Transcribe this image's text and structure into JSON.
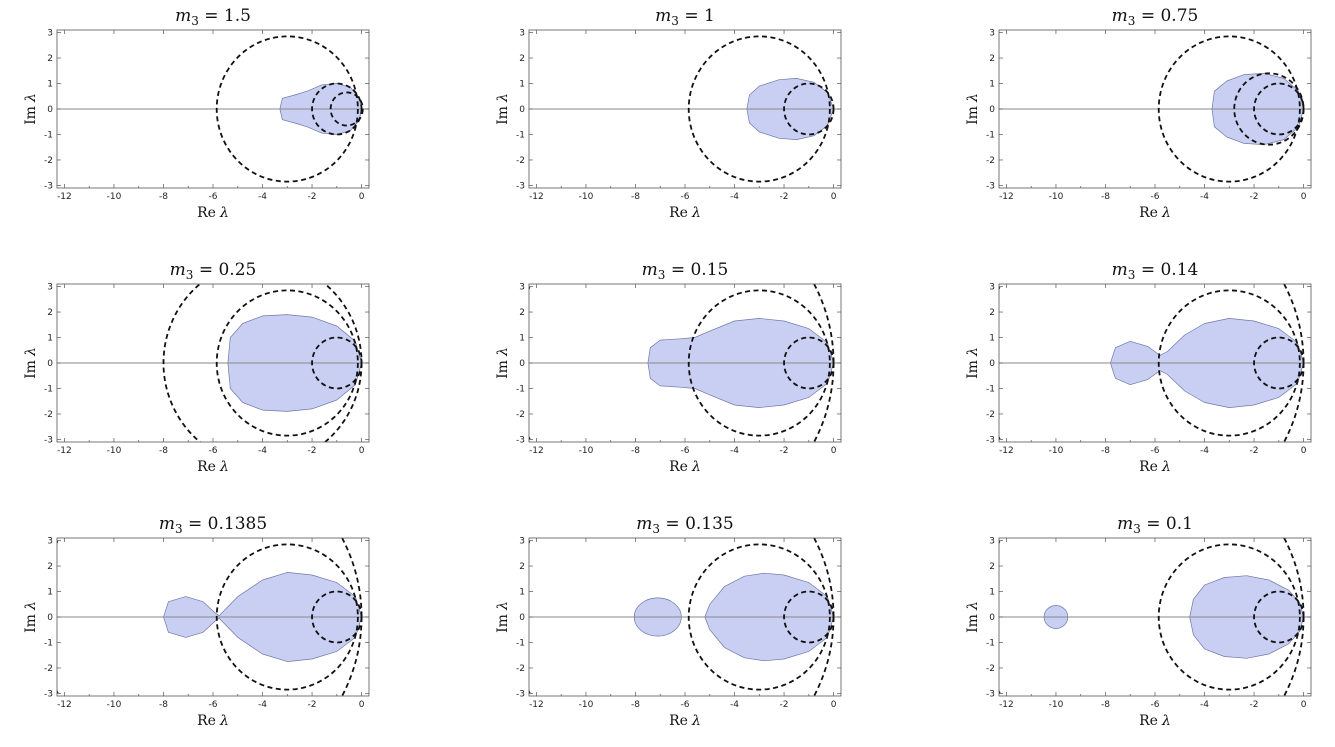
{
  "chart_data": [
    {
      "type": "region",
      "title_var": "m",
      "title_sub": "3",
      "title_value": "1.5",
      "xlabel_main": "Re",
      "ylabel_main": "Im",
      "label_var": "λ",
      "xlim": [
        -12.3,
        0.3
      ],
      "ylim": [
        -3.1,
        3.1
      ],
      "xticks": [
        -12,
        -10,
        -8,
        -6,
        -4,
        -2,
        0
      ],
      "yticks": [
        -3,
        -2,
        -1,
        0,
        1,
        2,
        3
      ],
      "circles": [
        {
          "cx": -3,
          "r": 2.85
        },
        {
          "cx": -1,
          "r": 1
        },
        {
          "cx": -0.6,
          "r": 0.65
        }
      ],
      "region_outline": [
        [
          -3.3,
          0
        ],
        [
          -3.2,
          0.42
        ],
        [
          -2.7,
          0.55
        ],
        [
          -2.2,
          0.7
        ],
        [
          -1.6,
          0.95
        ],
        [
          -1.0,
          1.0
        ],
        [
          -0.45,
          0.85
        ],
        [
          -0.1,
          0.45
        ],
        [
          0,
          0
        ],
        [
          -0.1,
          -0.45
        ],
        [
          -0.45,
          -0.85
        ],
        [
          -1.0,
          -1.0
        ],
        [
          -1.6,
          -0.95
        ],
        [
          -2.2,
          -0.7
        ],
        [
          -2.7,
          -0.55
        ],
        [
          -3.2,
          -0.42
        ]
      ]
    },
    {
      "type": "region",
      "title_var": "m",
      "title_sub": "3",
      "title_value": "1",
      "xlabel_main": "Re",
      "ylabel_main": "Im",
      "label_var": "λ",
      "xlim": [
        -12.3,
        0.3
      ],
      "ylim": [
        -3.1,
        3.1
      ],
      "xticks": [
        -12,
        -10,
        -8,
        -6,
        -4,
        -2,
        0
      ],
      "yticks": [
        -3,
        -2,
        -1,
        0,
        1,
        2,
        3
      ],
      "circles": [
        {
          "cx": -3,
          "r": 2.85
        },
        {
          "cx": -1,
          "r": 1
        }
      ],
      "region_outline": [
        [
          -3.5,
          0
        ],
        [
          -3.4,
          0.55
        ],
        [
          -3.0,
          0.9
        ],
        [
          -2.2,
          1.15
        ],
        [
          -1.5,
          1.2
        ],
        [
          -0.8,
          1.05
        ],
        [
          -0.25,
          0.65
        ],
        [
          0,
          0
        ],
        [
          -0.25,
          -0.65
        ],
        [
          -0.8,
          -1.05
        ],
        [
          -1.5,
          -1.2
        ],
        [
          -2.2,
          -1.15
        ],
        [
          -3.0,
          -0.9
        ],
        [
          -3.4,
          -0.55
        ]
      ]
    },
    {
      "type": "region",
      "title_var": "m",
      "title_sub": "3",
      "title_value": "0.75",
      "xlabel_main": "Re",
      "ylabel_main": "Im",
      "label_var": "λ",
      "xlim": [
        -12.3,
        0.3
      ],
      "ylim": [
        -3.1,
        3.1
      ],
      "xticks": [
        -12,
        -10,
        -8,
        -6,
        -4,
        -2,
        0
      ],
      "yticks": [
        -3,
        -2,
        -1,
        0,
        1,
        2,
        3
      ],
      "circles": [
        {
          "cx": -3,
          "r": 2.85
        },
        {
          "cx": -1.4,
          "r": 1.4
        },
        {
          "cx": -1,
          "r": 1
        }
      ],
      "region_outline": [
        [
          -3.7,
          0
        ],
        [
          -3.6,
          0.7
        ],
        [
          -3.1,
          1.1
        ],
        [
          -2.4,
          1.35
        ],
        [
          -1.6,
          1.4
        ],
        [
          -0.8,
          1.2
        ],
        [
          -0.2,
          0.7
        ],
        [
          0,
          0
        ],
        [
          -0.2,
          -0.7
        ],
        [
          -0.8,
          -1.2
        ],
        [
          -1.6,
          -1.4
        ],
        [
          -2.4,
          -1.35
        ],
        [
          -3.1,
          -1.1
        ],
        [
          -3.6,
          -0.7
        ]
      ]
    },
    {
      "type": "region",
      "title_var": "m",
      "title_sub": "3",
      "title_value": "0.25",
      "xlabel_main": "Re",
      "ylabel_main": "Im",
      "label_var": "λ",
      "xlim": [
        -12.3,
        0.3
      ],
      "ylim": [
        -3.1,
        3.1
      ],
      "xticks": [
        -12,
        -10,
        -8,
        -6,
        -4,
        -2,
        0
      ],
      "yticks": [
        -3,
        -2,
        -1,
        0,
        1,
        2,
        3
      ],
      "circles": [
        {
          "cx": -4,
          "r": 4
        },
        {
          "cx": -3,
          "r": 2.85
        },
        {
          "cx": -1,
          "r": 1
        }
      ],
      "region_outline": [
        [
          -5.4,
          0
        ],
        [
          -5.3,
          1.0
        ],
        [
          -4.8,
          1.55
        ],
        [
          -4.0,
          1.85
        ],
        [
          -3.0,
          1.9
        ],
        [
          -2.0,
          1.8
        ],
        [
          -1.0,
          1.45
        ],
        [
          -0.25,
          0.85
        ],
        [
          0,
          0
        ],
        [
          -0.25,
          -0.85
        ],
        [
          -1.0,
          -1.45
        ],
        [
          -2.0,
          -1.8
        ],
        [
          -3.0,
          -1.9
        ],
        [
          -4.0,
          -1.85
        ],
        [
          -4.8,
          -1.55
        ],
        [
          -5.3,
          -1.0
        ]
      ]
    },
    {
      "type": "region",
      "title_var": "m",
      "title_sub": "3",
      "title_value": "0.15",
      "xlabel_main": "Re",
      "ylabel_main": "Im",
      "label_var": "λ",
      "xlim": [
        -12.3,
        0.3
      ],
      "ylim": [
        -3.1,
        3.1
      ],
      "xticks": [
        -12,
        -10,
        -8,
        -6,
        -4,
        -2,
        0
      ],
      "yticks": [
        -3,
        -2,
        -1,
        0,
        1,
        2,
        3
      ],
      "circles": [
        {
          "cx": -3,
          "r": 2.85
        },
        {
          "cx": -1,
          "r": 1
        },
        {
          "cx": -6.5,
          "r": 6.5
        }
      ],
      "region_outline": [
        [
          -7.5,
          0
        ],
        [
          -7.4,
          0.6
        ],
        [
          -7.0,
          0.9
        ],
        [
          -6.2,
          0.95
        ],
        [
          -5.6,
          1.0
        ],
        [
          -5.0,
          1.25
        ],
        [
          -4.0,
          1.65
        ],
        [
          -3.0,
          1.75
        ],
        [
          -2.0,
          1.65
        ],
        [
          -1.0,
          1.35
        ],
        [
          -0.25,
          0.8
        ],
        [
          0,
          0
        ],
        [
          -0.25,
          -0.8
        ],
        [
          -1.0,
          -1.35
        ],
        [
          -2.0,
          -1.65
        ],
        [
          -3.0,
          -1.75
        ],
        [
          -4.0,
          -1.65
        ],
        [
          -5.0,
          -1.25
        ],
        [
          -5.6,
          -1.0
        ],
        [
          -6.2,
          -0.95
        ],
        [
          -7.0,
          -0.9
        ],
        [
          -7.4,
          -0.6
        ]
      ]
    },
    {
      "type": "region",
      "title_var": "m",
      "title_sub": "3",
      "title_value": "0.14",
      "xlabel_main": "Re",
      "ylabel_main": "Im",
      "label_var": "λ",
      "xlim": [
        -12.3,
        0.3
      ],
      "ylim": [
        -3.1,
        3.1
      ],
      "xticks": [
        -12,
        -10,
        -8,
        -6,
        -4,
        -2,
        0
      ],
      "yticks": [
        -3,
        -2,
        -1,
        0,
        1,
        2,
        3
      ],
      "circles": [
        {
          "cx": -3,
          "r": 2.85
        },
        {
          "cx": -1,
          "r": 1
        },
        {
          "cx": -6.5,
          "r": 6.5
        }
      ],
      "region_outline": [
        [
          -7.8,
          0
        ],
        [
          -7.6,
          0.6
        ],
        [
          -7.0,
          0.85
        ],
        [
          -6.3,
          0.65
        ],
        [
          -5.8,
          0.3
        ],
        [
          -5.5,
          0.45
        ],
        [
          -4.8,
          1.1
        ],
        [
          -4.0,
          1.55
        ],
        [
          -3.0,
          1.75
        ],
        [
          -2.0,
          1.65
        ],
        [
          -1.0,
          1.35
        ],
        [
          -0.25,
          0.8
        ],
        [
          0,
          0
        ],
        [
          -0.25,
          -0.8
        ],
        [
          -1.0,
          -1.35
        ],
        [
          -2.0,
          -1.65
        ],
        [
          -3.0,
          -1.75
        ],
        [
          -4.0,
          -1.55
        ],
        [
          -4.8,
          -1.1
        ],
        [
          -5.5,
          -0.45
        ],
        [
          -5.8,
          -0.3
        ],
        [
          -6.3,
          -0.65
        ],
        [
          -7.0,
          -0.85
        ],
        [
          -7.6,
          -0.6
        ]
      ]
    },
    {
      "type": "region",
      "title_var": "m",
      "title_sub": "3",
      "title_value": "0.1385",
      "xlabel_main": "Re",
      "ylabel_main": "Im",
      "label_var": "λ",
      "xlim": [
        -12.3,
        0.3
      ],
      "ylim": [
        -3.1,
        3.1
      ],
      "xticks": [
        -12,
        -10,
        -8,
        -6,
        -4,
        -2,
        0
      ],
      "yticks": [
        -3,
        -2,
        -1,
        0,
        1,
        2,
        3
      ],
      "circles": [
        {
          "cx": -3,
          "r": 2.85
        },
        {
          "cx": -1,
          "r": 1
        },
        {
          "cx": -6.5,
          "r": 6.5
        }
      ],
      "region_outline": [
        [
          -8.0,
          0
        ],
        [
          -7.8,
          0.6
        ],
        [
          -7.1,
          0.8
        ],
        [
          -6.4,
          0.6
        ],
        [
          -5.9,
          0.15
        ],
        [
          -5.75,
          0.05
        ],
        [
          -5.6,
          0.2
        ],
        [
          -5.0,
          0.8
        ],
        [
          -4.0,
          1.45
        ],
        [
          -3.0,
          1.75
        ],
        [
          -2.0,
          1.65
        ],
        [
          -1.0,
          1.35
        ],
        [
          -0.25,
          0.8
        ],
        [
          0,
          0
        ],
        [
          -0.25,
          -0.8
        ],
        [
          -1.0,
          -1.35
        ],
        [
          -2.0,
          -1.65
        ],
        [
          -3.0,
          -1.75
        ],
        [
          -4.0,
          -1.45
        ],
        [
          -5.0,
          -0.8
        ],
        [
          -5.6,
          -0.2
        ],
        [
          -5.75,
          -0.05
        ],
        [
          -5.9,
          -0.15
        ],
        [
          -6.4,
          -0.6
        ],
        [
          -7.1,
          -0.8
        ],
        [
          -7.8,
          -0.6
        ]
      ]
    },
    {
      "type": "region",
      "title_var": "m",
      "title_sub": "3",
      "title_value": "0.135",
      "xlabel_main": "Re",
      "ylabel_main": "Im",
      "label_var": "λ",
      "xlim": [
        -12.3,
        0.3
      ],
      "ylim": [
        -3.1,
        3.1
      ],
      "xticks": [
        -12,
        -10,
        -8,
        -6,
        -4,
        -2,
        0
      ],
      "yticks": [
        -3,
        -2,
        -1,
        0,
        1,
        2,
        3
      ],
      "circles": [
        {
          "cx": -3,
          "r": 2.85
        },
        {
          "cx": -1,
          "r": 1
        },
        {
          "cx": -6.5,
          "r": 6.5
        }
      ],
      "region_outline": [
        [
          -5.2,
          0
        ],
        [
          -5.0,
          0.5
        ],
        [
          -4.4,
          1.2
        ],
        [
          -3.6,
          1.6
        ],
        [
          -2.8,
          1.72
        ],
        [
          -2.0,
          1.65
        ],
        [
          -1.0,
          1.35
        ],
        [
          -0.25,
          0.8
        ],
        [
          0,
          0
        ],
        [
          -0.25,
          -0.8
        ],
        [
          -1.0,
          -1.35
        ],
        [
          -2.0,
          -1.65
        ],
        [
          -2.8,
          -1.72
        ],
        [
          -3.6,
          -1.6
        ],
        [
          -4.4,
          -1.2
        ],
        [
          -5.0,
          -0.5
        ]
      ],
      "island": {
        "cx": -7.1,
        "rx": 0.95,
        "ry": 0.75
      }
    },
    {
      "type": "region",
      "title_var": "m",
      "title_sub": "3",
      "title_value": "0.1",
      "xlabel_main": "Re",
      "ylabel_main": "Im",
      "label_var": "λ",
      "xlim": [
        -12.3,
        0.3
      ],
      "ylim": [
        -3.1,
        3.1
      ],
      "xticks": [
        -12,
        -10,
        -8,
        -6,
        -4,
        -2,
        0
      ],
      "yticks": [
        -3,
        -2,
        -1,
        0,
        1,
        2,
        3
      ],
      "circles": [
        {
          "cx": -3,
          "r": 2.85
        },
        {
          "cx": -1,
          "r": 1
        },
        {
          "cx": -6.5,
          "r": 6.5
        }
      ],
      "region_outline": [
        [
          -4.6,
          0
        ],
        [
          -4.45,
          0.7
        ],
        [
          -4.0,
          1.25
        ],
        [
          -3.2,
          1.55
        ],
        [
          -2.3,
          1.62
        ],
        [
          -1.4,
          1.45
        ],
        [
          -0.6,
          1.05
        ],
        [
          -0.15,
          0.55
        ],
        [
          0,
          0
        ],
        [
          -0.15,
          -0.55
        ],
        [
          -0.6,
          -1.05
        ],
        [
          -1.4,
          -1.45
        ],
        [
          -2.3,
          -1.62
        ],
        [
          -3.2,
          -1.55
        ],
        [
          -4.0,
          -1.25
        ],
        [
          -4.45,
          -0.7
        ]
      ],
      "island": {
        "cx": -10.0,
        "rx": 0.48,
        "ry": 0.45
      }
    }
  ]
}
